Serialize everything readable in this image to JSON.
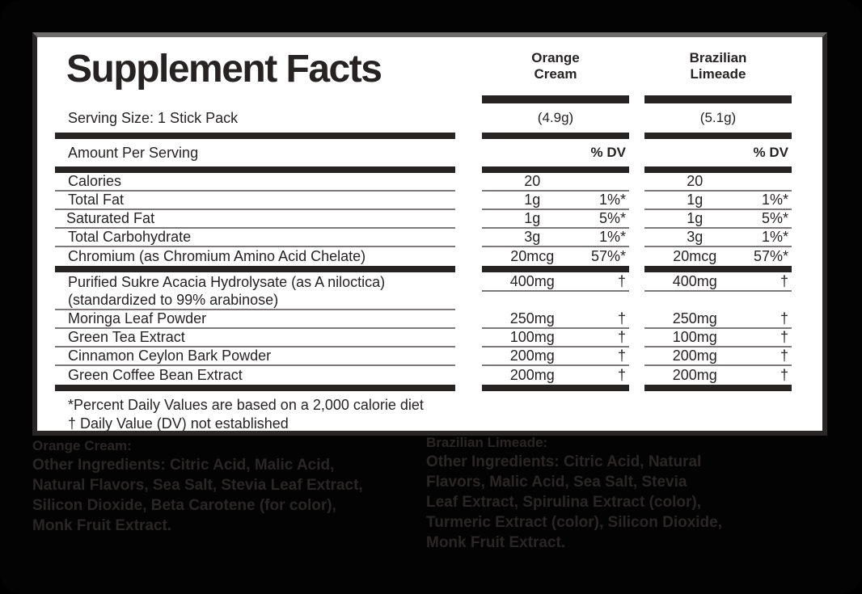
{
  "label": {
    "title": "Supplement Facts",
    "serving_size": "Serving Size: 1 Stick Pack",
    "amount_per_serving": "Amount Per Serving",
    "percent_dv": "% DV",
    "columns": [
      {
        "name_line1": "Orange",
        "name_line2": "Cream",
        "serving_weight": "(4.9g)"
      },
      {
        "name_line1": "Brazilian",
        "name_line2": "Limeade",
        "serving_weight": "(5.1g)"
      }
    ],
    "sections": [
      {
        "rows": [
          {
            "label": "Calories",
            "amounts": [
              "20",
              "20"
            ],
            "dvs": [
              "",
              ""
            ],
            "sep": true
          },
          {
            "label": "Total Fat",
            "amounts": [
              "1g",
              "1g"
            ],
            "dvs": [
              "1%*",
              "1%*"
            ],
            "sep": true
          },
          {
            "label": "Saturated Fat",
            "indent": true,
            "amounts": [
              "1g",
              "1g"
            ],
            "dvs": [
              "5%*",
              "5%*"
            ],
            "sep": true
          },
          {
            "label": "Total Carbohydrate",
            "amounts": [
              "3g",
              "3g"
            ],
            "dvs": [
              "1%*",
              "1%*"
            ],
            "sep": true
          },
          {
            "label": "Chromium (as Chromium Amino Acid Chelate)",
            "amounts": [
              "20mcg",
              "20mcg"
            ],
            "dvs": [
              "57%*",
              "57%*"
            ],
            "sep": false
          }
        ]
      },
      {
        "rows": [
          {
            "label": "Purified Sukre Acacia Hydrolysate (as A niloctica)",
            "label2": "(standardized to 99% arabinose)",
            "tall": true,
            "amounts": [
              "400mg",
              "400mg"
            ],
            "dvs": [
              "†",
              "†"
            ],
            "sep": true
          },
          {
            "label": "Moringa Leaf Powder",
            "amounts": [
              "250mg",
              "250mg"
            ],
            "dvs": [
              "†",
              "†"
            ],
            "sep": true
          },
          {
            "label": "Green Tea Extract",
            "amounts": [
              "100mg",
              "100mg"
            ],
            "dvs": [
              "†",
              "†"
            ],
            "sep": true
          },
          {
            "label": "Cinnamon Ceylon Bark Powder",
            "amounts": [
              "200mg",
              "200mg"
            ],
            "dvs": [
              "†",
              "†"
            ],
            "sep": true
          },
          {
            "label": "Green Coffee Bean Extract",
            "amounts": [
              "200mg",
              "200mg"
            ],
            "dvs": [
              "†",
              "†"
            ],
            "sep": false
          }
        ]
      }
    ],
    "footnotes": [
      "*Percent Daily Values are based on a 2,000 calorie diet",
      "†  Daily Value (DV) not established"
    ]
  },
  "footer_left": {
    "heading": "Orange Cream:",
    "lines": [
      "Other Ingredients: Citric Acid, Malic Acid,",
      "Natural Flavors, Sea Salt, Stevia Leaf Extract,",
      "Silicon Dioxide, Beta Carotene (for color),",
      "Monk Fruit Extract."
    ]
  },
  "footer_right": {
    "heading": "Brazilian Limeade:",
    "lines": [
      "Other Ingredients: Citric Acid, Natural",
      "Flavors, Malic Acid, Sea Salt, Stevia",
      "Leaf Extract, Spirulina Extract (color),",
      "Turmeric Extract (color), Silicon Dioxide,",
      "Monk Fruit Extract."
    ]
  },
  "colors": {
    "ink": "#272323",
    "panel": "#ffffff",
    "background": "#040303",
    "thin_rule": "#7e7979",
    "footer_text": "#2b2626"
  }
}
